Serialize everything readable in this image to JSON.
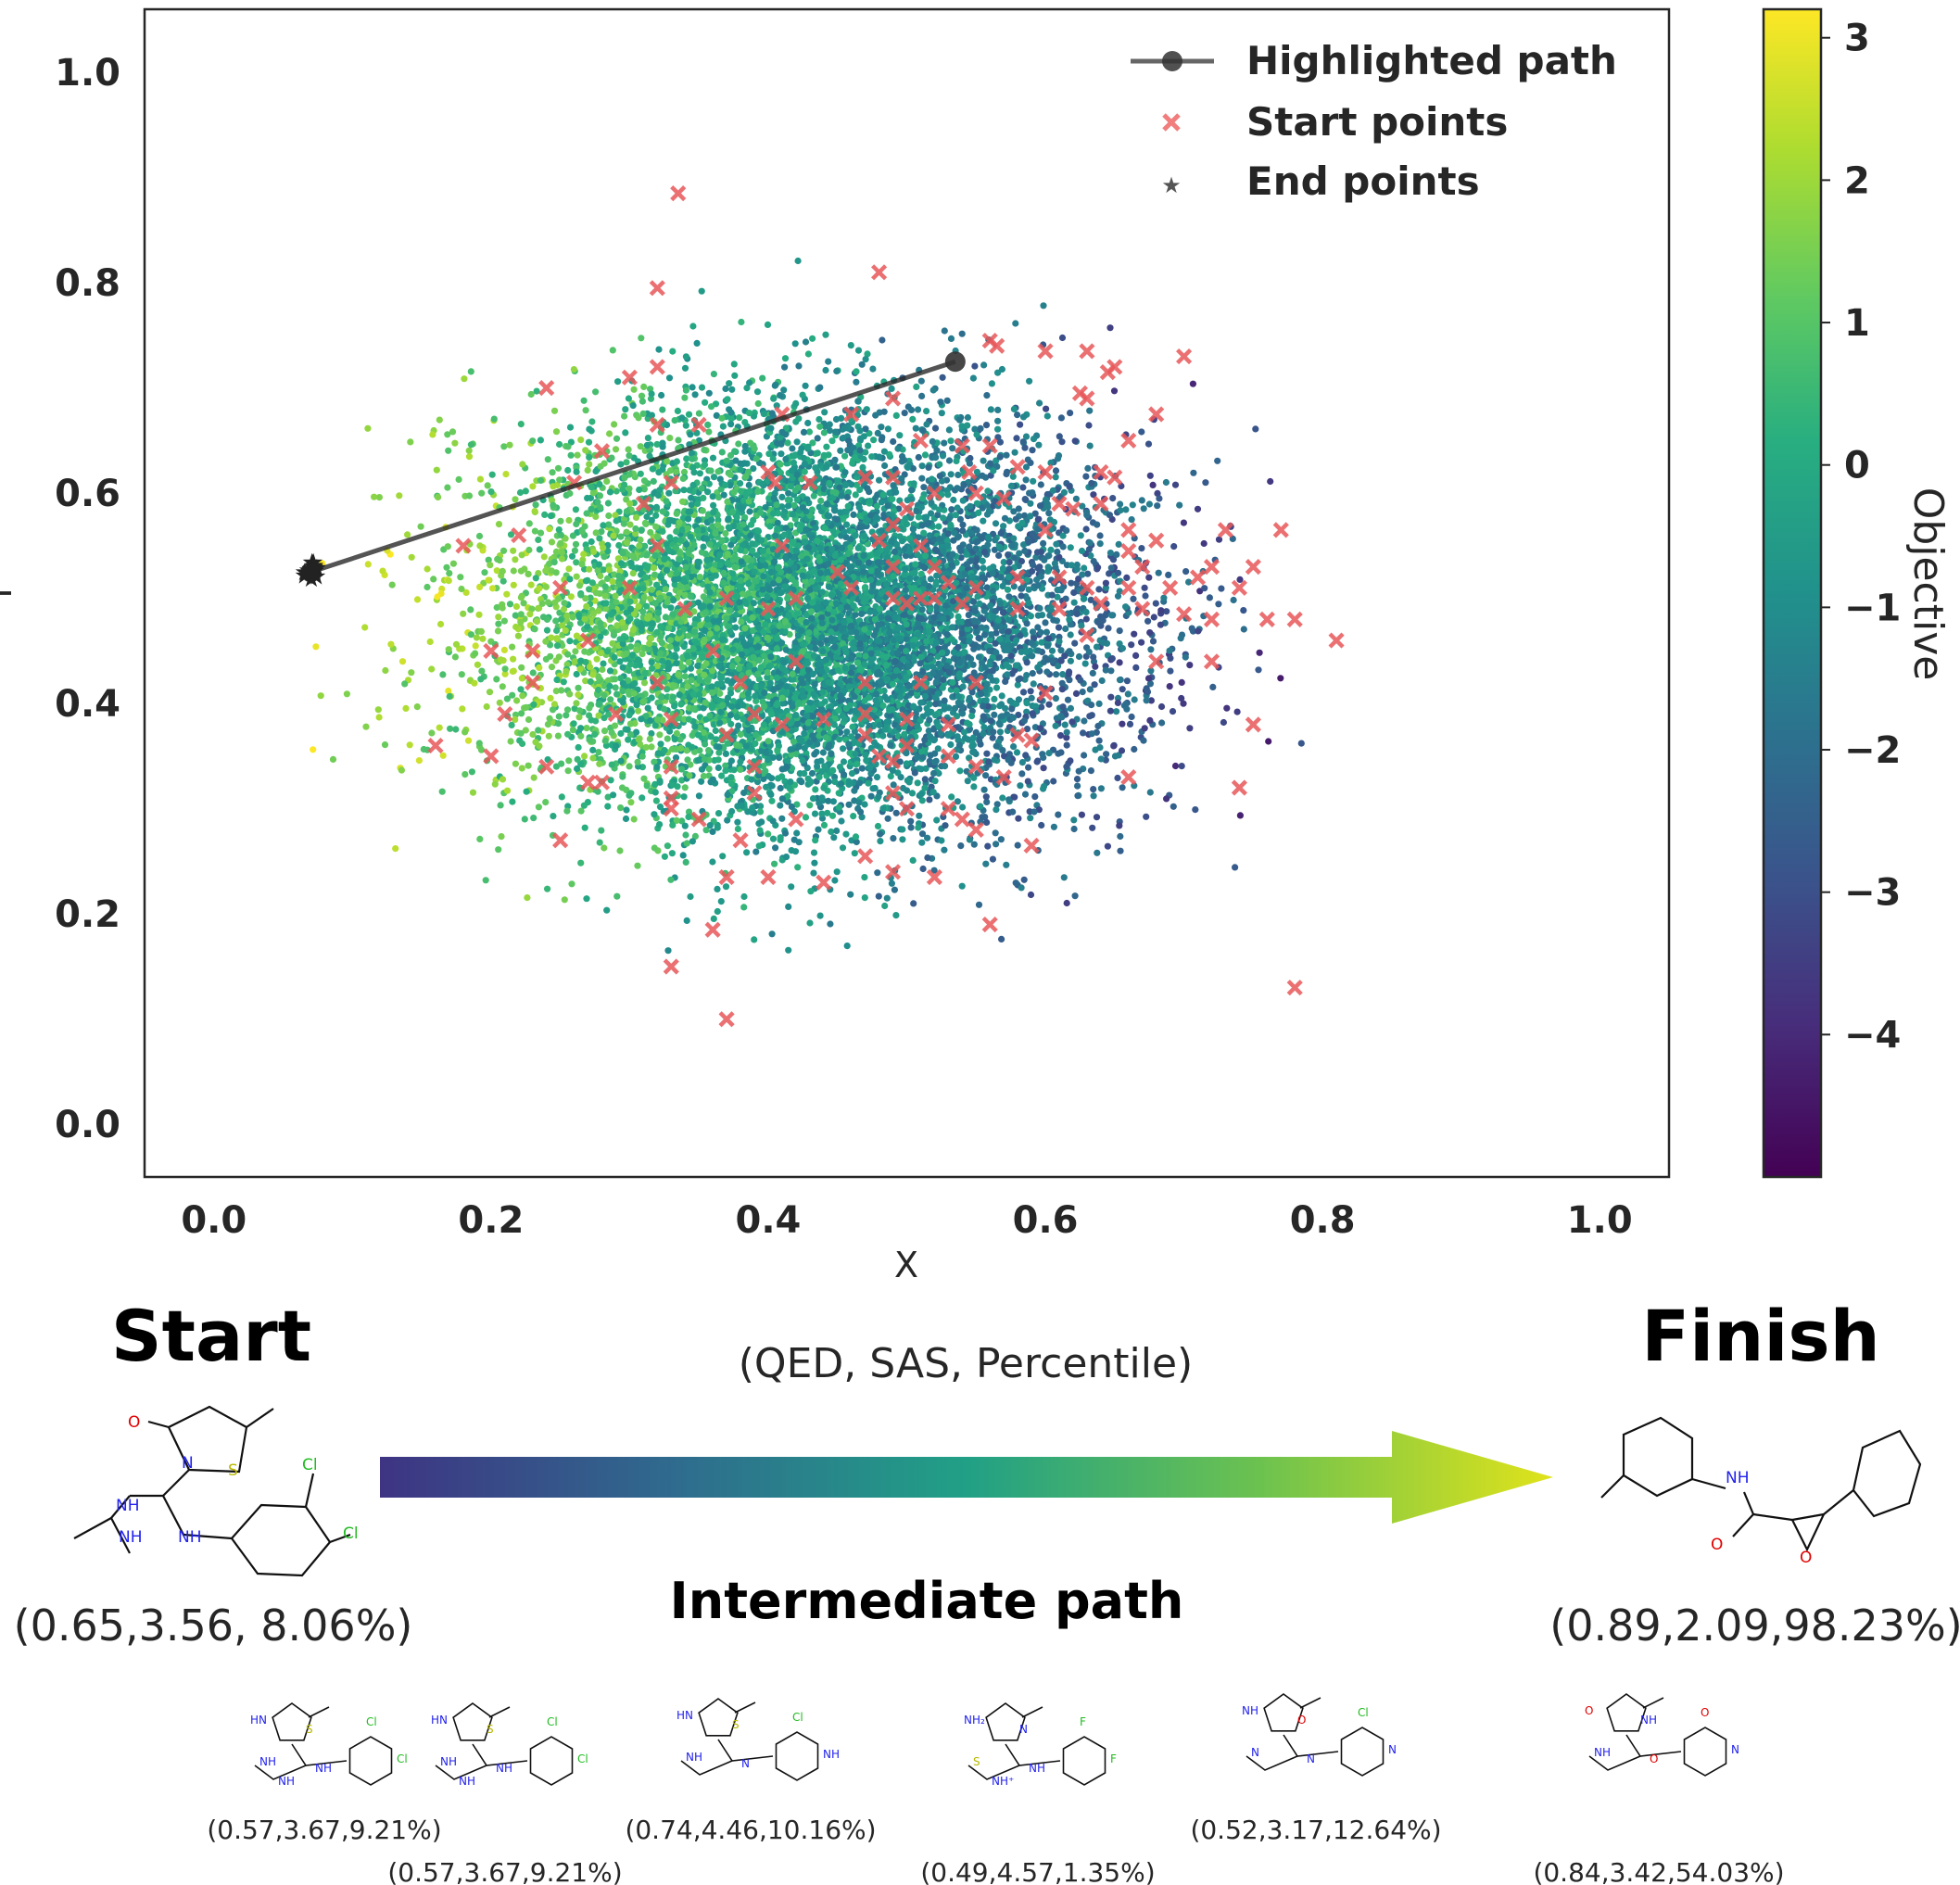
{
  "chart_data": {
    "type": "scatter",
    "title": "",
    "xlabel": "X",
    "ylabel": "Y",
    "xlim": [
      -0.05,
      1.05
    ],
    "ylim": [
      -0.05,
      1.06
    ],
    "xticks": [
      "0.0",
      "0.2",
      "0.4",
      "0.6",
      "0.8",
      "1.0"
    ],
    "xtick_values": [
      0.0,
      0.2,
      0.4,
      0.6,
      0.8,
      1.0
    ],
    "yticks": [
      "0.0",
      "0.2",
      "0.4",
      "0.6",
      "0.8",
      "1.0"
    ],
    "ytick_values": [
      0.0,
      0.2,
      0.4,
      0.6,
      0.8,
      1.0
    ],
    "grid": false,
    "legend_position": "top-right",
    "legend": [
      {
        "name": "Highlighted path",
        "marker": "line-circle",
        "color": "#333333"
      },
      {
        "name": "Start points",
        "marker": "x",
        "color": "#f07070"
      },
      {
        "name": "End points",
        "marker": "star",
        "color": "#555555"
      }
    ],
    "colorbar": {
      "label": "Objective",
      "range": [
        -5,
        3.2
      ],
      "ticks": [
        "3",
        "2",
        "1",
        "0",
        "−1",
        "−2",
        "−3",
        "−4"
      ],
      "tick_values": [
        3,
        2,
        1,
        0,
        -1,
        -2,
        -3,
        -4
      ],
      "colormap": "viridis"
    },
    "background_cloud": {
      "description_values": {
        "x_range": [
          0.0,
          1.0
        ],
        "y_range": [
          0.02,
          1.0
        ],
        "center": [
          0.42,
          0.48
        ]
      },
      "color_trend": "yellow at low x, dark purple at high x"
    },
    "highlighted_path": {
      "name": "Highlighted path",
      "points": [
        {
          "x": 0.07,
          "y": 0.525
        },
        {
          "x": 0.535,
          "y": 0.725
        }
      ]
    },
    "start_points": [
      [
        0.335,
        0.885
      ],
      [
        0.48,
        0.81
      ],
      [
        0.32,
        0.795
      ],
      [
        0.56,
        0.745
      ],
      [
        0.565,
        0.74
      ],
      [
        0.6,
        0.735
      ],
      [
        0.63,
        0.735
      ],
      [
        0.7,
        0.73
      ],
      [
        0.65,
        0.72
      ],
      [
        0.645,
        0.715
      ],
      [
        0.3,
        0.71
      ],
      [
        0.24,
        0.7
      ],
      [
        0.32,
        0.72
      ],
      [
        0.625,
        0.695
      ],
      [
        0.63,
        0.69
      ],
      [
        0.49,
        0.69
      ],
      [
        0.68,
        0.675
      ],
      [
        0.32,
        0.665
      ],
      [
        0.35,
        0.665
      ],
      [
        0.41,
        0.675
      ],
      [
        0.46,
        0.675
      ],
      [
        0.51,
        0.65
      ],
      [
        0.66,
        0.65
      ],
      [
        0.54,
        0.645
      ],
      [
        0.56,
        0.645
      ],
      [
        0.28,
        0.64
      ],
      [
        0.58,
        0.625
      ],
      [
        0.6,
        0.62
      ],
      [
        0.64,
        0.62
      ],
      [
        0.65,
        0.615
      ],
      [
        0.545,
        0.62
      ],
      [
        0.4,
        0.62
      ],
      [
        0.405,
        0.61
      ],
      [
        0.43,
        0.61
      ],
      [
        0.47,
        0.615
      ],
      [
        0.49,
        0.615
      ],
      [
        0.33,
        0.61
      ],
      [
        0.26,
        0.61
      ],
      [
        0.52,
        0.6
      ],
      [
        0.55,
        0.6
      ],
      [
        0.57,
        0.595
      ],
      [
        0.61,
        0.59
      ],
      [
        0.62,
        0.585
      ],
      [
        0.64,
        0.59
      ],
      [
        0.5,
        0.585
      ],
      [
        0.49,
        0.57
      ],
      [
        0.31,
        0.59
      ],
      [
        0.6,
        0.565
      ],
      [
        0.66,
        0.565
      ],
      [
        0.68,
        0.555
      ],
      [
        0.22,
        0.56
      ],
      [
        0.18,
        0.55
      ],
      [
        0.32,
        0.55
      ],
      [
        0.41,
        0.55
      ],
      [
        0.48,
        0.555
      ],
      [
        0.51,
        0.55
      ],
      [
        0.73,
        0.565
      ],
      [
        0.77,
        0.565
      ],
      [
        0.66,
        0.545
      ],
      [
        0.67,
        0.53
      ],
      [
        0.72,
        0.53
      ],
      [
        0.71,
        0.52
      ],
      [
        0.75,
        0.53
      ],
      [
        0.74,
        0.51
      ],
      [
        0.45,
        0.525
      ],
      [
        0.49,
        0.53
      ],
      [
        0.52,
        0.53
      ],
      [
        0.53,
        0.515
      ],
      [
        0.46,
        0.51
      ],
      [
        0.55,
        0.51
      ],
      [
        0.58,
        0.52
      ],
      [
        0.61,
        0.52
      ],
      [
        0.63,
        0.51
      ],
      [
        0.66,
        0.51
      ],
      [
        0.69,
        0.51
      ],
      [
        0.25,
        0.51
      ],
      [
        0.3,
        0.51
      ],
      [
        0.37,
        0.5
      ],
      [
        0.42,
        0.5
      ],
      [
        0.49,
        0.5
      ],
      [
        0.5,
        0.495
      ],
      [
        0.51,
        0.5
      ],
      [
        0.52,
        0.5
      ],
      [
        0.54,
        0.495
      ],
      [
        0.58,
        0.49
      ],
      [
        0.61,
        0.49
      ],
      [
        0.64,
        0.495
      ],
      [
        0.67,
        0.49
      ],
      [
        0.7,
        0.485
      ],
      [
        0.72,
        0.48
      ],
      [
        0.76,
        0.48
      ],
      [
        0.78,
        0.48
      ],
      [
        0.81,
        0.46
      ],
      [
        0.34,
        0.49
      ],
      [
        0.4,
        0.49
      ],
      [
        0.63,
        0.465
      ],
      [
        0.2,
        0.45
      ],
      [
        0.23,
        0.45
      ],
      [
        0.27,
        0.46
      ],
      [
        0.36,
        0.45
      ],
      [
        0.42,
        0.44
      ],
      [
        0.68,
        0.44
      ],
      [
        0.72,
        0.44
      ],
      [
        0.23,
        0.42
      ],
      [
        0.32,
        0.42
      ],
      [
        0.38,
        0.42
      ],
      [
        0.47,
        0.42
      ],
      [
        0.51,
        0.42
      ],
      [
        0.55,
        0.42
      ],
      [
        0.6,
        0.41
      ],
      [
        0.21,
        0.39
      ],
      [
        0.29,
        0.39
      ],
      [
        0.33,
        0.385
      ],
      [
        0.39,
        0.39
      ],
      [
        0.41,
        0.38
      ],
      [
        0.44,
        0.385
      ],
      [
        0.47,
        0.39
      ],
      [
        0.5,
        0.385
      ],
      [
        0.53,
        0.38
      ],
      [
        0.75,
        0.38
      ],
      [
        0.37,
        0.37
      ],
      [
        0.47,
        0.37
      ],
      [
        0.5,
        0.36
      ],
      [
        0.58,
        0.37
      ],
      [
        0.59,
        0.365
      ],
      [
        0.16,
        0.36
      ],
      [
        0.2,
        0.35
      ],
      [
        0.24,
        0.34
      ],
      [
        0.33,
        0.34
      ],
      [
        0.39,
        0.34
      ],
      [
        0.48,
        0.35
      ],
      [
        0.49,
        0.345
      ],
      [
        0.53,
        0.35
      ],
      [
        0.55,
        0.34
      ],
      [
        0.57,
        0.33
      ],
      [
        0.27,
        0.325
      ],
      [
        0.28,
        0.325
      ],
      [
        0.33,
        0.31
      ],
      [
        0.39,
        0.315
      ],
      [
        0.49,
        0.315
      ],
      [
        0.5,
        0.3
      ],
      [
        0.53,
        0.3
      ],
      [
        0.66,
        0.33
      ],
      [
        0.74,
        0.32
      ],
      [
        0.33,
        0.3
      ],
      [
        0.35,
        0.29
      ],
      [
        0.42,
        0.29
      ],
      [
        0.54,
        0.29
      ],
      [
        0.55,
        0.28
      ],
      [
        0.25,
        0.27
      ],
      [
        0.38,
        0.27
      ],
      [
        0.47,
        0.255
      ],
      [
        0.59,
        0.265
      ],
      [
        0.37,
        0.235
      ],
      [
        0.4,
        0.235
      ],
      [
        0.44,
        0.23
      ],
      [
        0.49,
        0.24
      ],
      [
        0.52,
        0.235
      ],
      [
        0.36,
        0.185
      ],
      [
        0.56,
        0.19
      ],
      [
        0.33,
        0.15
      ],
      [
        0.37,
        0.1
      ],
      [
        0.78,
        0.13
      ]
    ],
    "end_points_cluster": {
      "name": "End points",
      "x_range": [
        0.065,
        0.075
      ],
      "y_range": [
        0.515,
        0.535
      ]
    }
  },
  "panel": {
    "start_title": "Start",
    "finish_title": "Finish",
    "arrow_caption": "(QED, SAS, Percentile)",
    "intermediate_title": "Intermediate path",
    "start_value": "(0.65,3.56,  8.06%)",
    "finish_value": "(0.89,2.09,98.23%)",
    "intermediate_values": [
      "(0.57,3.67,9.21%)",
      "(0.57,3.67,9.21%)",
      "(0.74,4.46,10.16%)",
      "(0.49,4.57,1.35%)",
      "(0.52,3.17,12.64%)",
      "(0.84,3.42,54.03%)"
    ],
    "start_atoms": [
      "O",
      "N",
      "S",
      "Cl",
      "Cl",
      "NH",
      "NH",
      "NH"
    ],
    "finish_atoms": [
      "NH",
      "O",
      "O"
    ],
    "inter_atoms": [
      [
        "HN",
        "NH",
        "S",
        "Cl",
        "Cl",
        "NH",
        "NH"
      ],
      [
        "HN",
        "NH",
        "S",
        "Cl",
        "Cl",
        "NH",
        "NH"
      ],
      [
        "HN",
        "NH",
        "S",
        "Cl",
        "NH",
        "N"
      ],
      [
        "NH₂",
        "S",
        "N",
        "F",
        "F",
        "NH",
        "NH⁺"
      ],
      [
        "NH",
        "N",
        "O",
        "Cl",
        "N",
        "N"
      ],
      [
        "O",
        "NH",
        "NH",
        "O",
        "N",
        "O"
      ]
    ]
  }
}
